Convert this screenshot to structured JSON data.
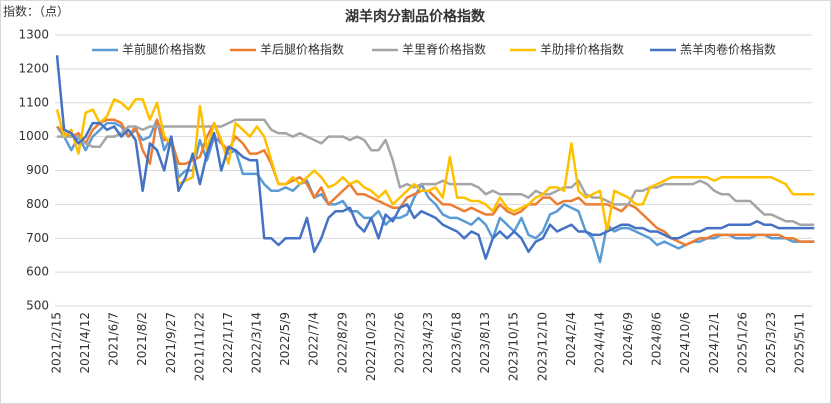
{
  "chart_data": {
    "type": "line",
    "title": "湖羊肉分割品价格指数",
    "y_label": "指数：（点）",
    "categories": [
      "2021/2/15",
      null,
      null,
      null,
      "2021/4/12",
      null,
      null,
      null,
      "2021/6/7",
      null,
      null,
      null,
      "2021/8/2",
      null,
      null,
      null,
      "2021/9/27",
      null,
      null,
      null,
      "2021/11/22",
      null,
      null,
      null,
      "2022/1/17",
      null,
      null,
      null,
      "2022/3/14",
      null,
      null,
      null,
      "2022/5/9",
      null,
      null,
      null,
      "2022/7/4",
      null,
      null,
      null,
      "2022/8/29",
      null,
      null,
      null,
      "2022/10/23",
      null,
      null,
      null,
      "2023/2/26",
      null,
      null,
      null,
      "2023/4/23",
      null,
      null,
      null,
      "2023/6/18",
      null,
      null,
      null,
      "2023/8/13",
      null,
      null,
      null,
      "2023/10/15",
      null,
      null,
      null,
      "2023/12/10",
      null,
      null,
      null,
      "2024/2/4",
      null,
      null,
      null,
      "2024/4/14",
      null,
      null,
      null,
      "2024/6/9",
      null,
      null,
      null,
      "2024/8/6",
      null,
      null,
      null,
      "2024/10/6",
      null,
      null,
      null,
      "2024/12/1",
      null,
      null,
      null,
      "2025/1/26",
      null,
      null,
      null,
      "2025/3/23",
      null,
      null,
      null,
      "2025/5/11",
      null,
      null
    ],
    "series": [
      {
        "name": "羊前腿价格指数",
        "color": "#5b9bd5",
        "values": [
          1030,
          1000,
          960,
          1000,
          960,
          1000,
          1020,
          1040,
          1040,
          1030,
          1000,
          1020,
          990,
          1000,
          1050,
          960,
          1000,
          880,
          900,
          900,
          990,
          930,
          1000,
          980,
          950,
          960,
          890,
          890,
          890,
          860,
          840,
          840,
          850,
          840,
          860,
          870,
          820,
          830,
          800,
          800,
          810,
          780,
          780,
          760,
          760,
          780,
          740,
          760,
          760,
          770,
          820,
          860,
          820,
          800,
          770,
          760,
          760,
          750,
          740,
          760,
          740,
          700,
          760,
          740,
          720,
          760,
          710,
          700,
          720,
          770,
          780,
          800,
          790,
          780,
          720,
          700,
          630,
          740,
          720,
          730,
          730,
          720,
          710,
          700,
          680,
          690,
          680,
          670,
          680,
          690,
          690,
          700,
          700,
          710,
          710,
          700,
          700,
          700,
          710,
          710,
          700,
          700,
          700,
          690,
          690,
          690,
          690
        ]
      },
      {
        "name": "羊后腿价格指数",
        "color": "#ed7d31",
        "values": [
          1030,
          1010,
          1000,
          1010,
          980,
          1020,
          1040,
          1050,
          1050,
          1040,
          1000,
          1030,
          960,
          920,
          1050,
          990,
          990,
          920,
          920,
          930,
          940,
          1000,
          1040,
          980,
          960,
          1000,
          980,
          950,
          950,
          960,
          920,
          860,
          860,
          870,
          880,
          860,
          820,
          850,
          800,
          820,
          840,
          860,
          830,
          830,
          820,
          810,
          800,
          790,
          790,
          820,
          830,
          840,
          840,
          820,
          800,
          800,
          790,
          780,
          790,
          780,
          770,
          770,
          800,
          780,
          770,
          780,
          800,
          800,
          820,
          820,
          800,
          810,
          810,
          820,
          800,
          800,
          800,
          800,
          790,
          780,
          800,
          790,
          770,
          750,
          730,
          720,
          700,
          690,
          680,
          690,
          700,
          700,
          710,
          710,
          710,
          710,
          710,
          710,
          710,
          710,
          710,
          710,
          700,
          700,
          690,
          690,
          690
        ]
      },
      {
        "name": "羊里脊价格指数",
        "color": "#a5a5a5",
        "values": [
          1000,
          1000,
          1000,
          1000,
          980,
          970,
          970,
          1000,
          1000,
          1010,
          1030,
          1030,
          1020,
          1030,
          1030,
          1030,
          1030,
          1030,
          1030,
          1030,
          1030,
          1030,
          1030,
          1030,
          1040,
          1050,
          1050,
          1050,
          1050,
          1050,
          1020,
          1010,
          1010,
          1000,
          1010,
          1000,
          990,
          980,
          1000,
          1000,
          1000,
          990,
          1000,
          990,
          960,
          960,
          990,
          930,
          850,
          860,
          850,
          860,
          860,
          860,
          870,
          860,
          860,
          860,
          860,
          850,
          830,
          840,
          830,
          830,
          830,
          830,
          820,
          840,
          830,
          830,
          840,
          850,
          850,
          870,
          830,
          820,
          820,
          810,
          800,
          800,
          800,
          840,
          840,
          850,
          850,
          860,
          860,
          860,
          860,
          860,
          870,
          860,
          840,
          830,
          830,
          810,
          810,
          810,
          790,
          770,
          770,
          760,
          750,
          750,
          740,
          740,
          740
        ]
      },
      {
        "name": "羊肋排价格指数",
        "color": "#ffc000",
        "values": [
          1080,
          1000,
          1020,
          950,
          1070,
          1080,
          1040,
          1060,
          1110,
          1100,
          1080,
          1110,
          1110,
          1050,
          1100,
          1000,
          980,
          860,
          870,
          880,
          1090,
          960,
          1040,
          990,
          920,
          1040,
          1020,
          1000,
          1030,
          1000,
          930,
          860,
          860,
          880,
          860,
          880,
          900,
          880,
          850,
          860,
          880,
          860,
          870,
          850,
          840,
          820,
          840,
          800,
          820,
          840,
          860,
          840,
          840,
          850,
          820,
          940,
          820,
          820,
          810,
          810,
          800,
          780,
          820,
          790,
          780,
          790,
          800,
          820,
          830,
          850,
          850,
          840,
          980,
          840,
          820,
          830,
          840,
          720,
          840,
          830,
          820,
          800,
          800,
          850,
          860,
          870,
          880,
          880,
          880,
          880,
          880,
          880,
          870,
          880,
          880,
          880,
          880,
          880,
          880,
          880,
          880,
          870,
          860,
          830,
          830,
          830,
          830
        ]
      },
      {
        "name": "羔羊肉卷价格指数",
        "color": "#4472c4",
        "values": [
          1240,
          1020,
          1010,
          980,
          1000,
          1040,
          1040,
          1020,
          1030,
          1000,
          1020,
          990,
          840,
          980,
          960,
          900,
          1000,
          840,
          880,
          950,
          860,
          950,
          1010,
          900,
          970,
          960,
          940,
          930,
          930,
          700,
          700,
          680,
          700,
          700,
          700,
          760,
          660,
          700,
          760,
          780,
          780,
          790,
          740,
          720,
          760,
          700,
          770,
          750,
          790,
          800,
          760,
          780,
          770,
          760,
          740,
          730,
          720,
          700,
          720,
          710,
          640,
          700,
          720,
          700,
          720,
          700,
          660,
          690,
          700,
          740,
          720,
          730,
          740,
          720,
          720,
          710,
          710,
          720,
          730,
          740,
          740,
          730,
          730,
          720,
          720,
          710,
          700,
          700,
          710,
          720,
          720,
          730,
          730,
          730,
          740,
          740,
          740,
          740,
          750,
          740,
          740,
          730,
          730,
          730,
          730,
          730,
          730
        ]
      }
    ],
    "ylim": [
      500,
      1300
    ],
    "yticks": [
      500,
      600,
      700,
      800,
      900,
      1000,
      1100,
      1200,
      1300
    ],
    "grid": true,
    "legend": "top"
  }
}
